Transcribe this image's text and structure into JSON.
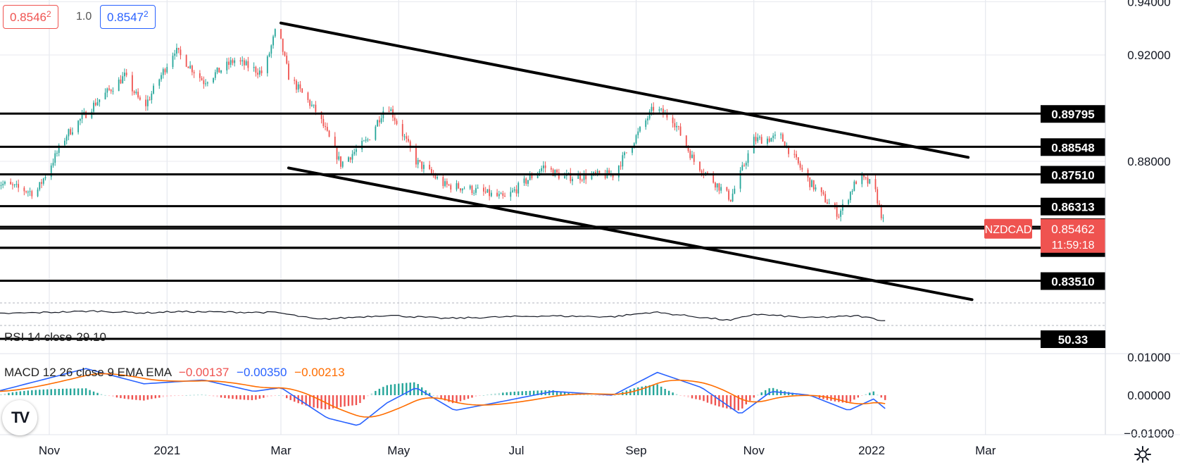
{
  "header": {
    "price_left": "0.8546",
    "price_left_sup": "2",
    "multiplier": "1.0",
    "price_right": "0.8547",
    "price_right_sup": "2"
  },
  "symbol": "NZDCAD",
  "current_price": "0.85462",
  "countdown": "11:59:18",
  "colors": {
    "up": "#26a69a",
    "down": "#ef5350",
    "macd_line": "#2962ff",
    "signal_line": "#ff6d00",
    "label_bg": "#000000"
  },
  "indicators": {
    "rsi": {
      "name": "RSI 14 close",
      "value": "29.10",
      "level_label": "50.33"
    },
    "macd": {
      "name": "MACD 12 26 close 9 EMA EMA",
      "hist": "−0.00137",
      "macd": "−0.00350",
      "signal": "−0.00213"
    }
  },
  "chart_data": {
    "type": "candlestick",
    "symbol": "NZDCAD",
    "x_ticks": [
      "Nov",
      "2021",
      "Mar",
      "May",
      "Jul",
      "Sep",
      "Nov",
      "2022",
      "Mar"
    ],
    "x_ticks_months": [
      "2020-11",
      "2021-01",
      "2021-03",
      "2021-05",
      "2021-07",
      "2021-09",
      "2021-11",
      "2022-01",
      "2022-03"
    ],
    "y_ticks": [
      "0.94000",
      "0.92000",
      "0.88000"
    ],
    "ylim": [
      0.823,
      0.9408
    ],
    "horizontal_levels": [
      "0.89795",
      "0.88548",
      "0.87510",
      "0.86313",
      "0.85537",
      "0.84750",
      "0.83510"
    ],
    "unlabeled_level": 0.8475,
    "trendlines": [
      {
        "start": [
          "2021-03-01",
          0.932
        ],
        "end": [
          "2022-02-20",
          0.8815
        ]
      },
      {
        "start": [
          "2021-03-05",
          0.8775
        ],
        "end": [
          "2022-02-22",
          0.828
        ]
      }
    ],
    "price_path": [
      [
        "2020-10-05",
        0.872
      ],
      [
        "2020-10-25",
        0.868
      ],
      [
        "2020-11-10",
        0.89
      ],
      [
        "2020-11-25",
        0.902
      ],
      [
        "2020-12-10",
        0.912
      ],
      [
        "2020-12-20",
        0.9
      ],
      [
        "2021-01-05",
        0.922
      ],
      [
        "2021-01-20",
        0.91
      ],
      [
        "2021-02-05",
        0.918
      ],
      [
        "2021-02-20",
        0.913
      ],
      [
        "2021-02-27",
        0.931
      ],
      [
        "2021-03-05",
        0.912
      ],
      [
        "2021-03-20",
        0.898
      ],
      [
        "2021-04-01",
        0.879
      ],
      [
        "2021-04-15",
        0.888
      ],
      [
        "2021-04-25",
        0.902
      ],
      [
        "2021-05-10",
        0.88
      ],
      [
        "2021-05-25",
        0.871
      ],
      [
        "2021-06-05",
        0.87
      ],
      [
        "2021-06-25",
        0.866
      ],
      [
        "2021-07-15",
        0.878
      ],
      [
        "2021-07-25",
        0.874
      ],
      [
        "2021-08-20",
        0.875
      ],
      [
        "2021-09-10",
        0.9
      ],
      [
        "2021-09-20",
        0.896
      ],
      [
        "2021-10-01",
        0.88
      ],
      [
        "2021-10-20",
        0.866
      ],
      [
        "2021-11-01",
        0.888
      ],
      [
        "2021-11-15",
        0.889
      ],
      [
        "2021-11-30",
        0.872
      ],
      [
        "2021-12-15",
        0.86
      ],
      [
        "2021-12-25",
        0.874
      ],
      [
        "2022-01-02",
        0.871
      ],
      [
        "2022-01-08",
        0.8546
      ]
    ],
    "rsi_ylim": [
      0,
      100
    ],
    "rsi_path": [
      [
        "2020-10-05",
        62
      ],
      [
        "2020-11-25",
        75
      ],
      [
        "2020-12-20",
        66
      ],
      [
        "2021-01-05",
        72
      ],
      [
        "2021-02-27",
        68
      ],
      [
        "2021-03-20",
        35
      ],
      [
        "2021-04-25",
        55
      ],
      [
        "2021-05-25",
        40
      ],
      [
        "2021-07-15",
        52
      ],
      [
        "2021-08-20",
        48
      ],
      [
        "2021-09-10",
        70
      ],
      [
        "2021-10-20",
        30
      ],
      [
        "2021-11-01",
        60
      ],
      [
        "2021-11-30",
        43
      ],
      [
        "2021-12-25",
        52
      ],
      [
        "2022-01-08",
        29.1
      ]
    ],
    "macd_ticks": [
      "0.01000",
      "0.00000",
      "−0.01000"
    ],
    "macd_ylim": [
      -0.0115,
      0.0115
    ],
    "macd_path": [
      [
        "2020-10-05",
        0.001
      ],
      [
        "2020-11-20",
        0.007
      ],
      [
        "2020-12-20",
        0.003
      ],
      [
        "2021-01-20",
        0.004
      ],
      [
        "2021-02-15",
        0.001
      ],
      [
        "2021-03-01",
        0.002
      ],
      [
        "2021-03-25",
        -0.006
      ],
      [
        "2021-04-10",
        -0.008
      ],
      [
        "2021-04-25",
        -0.002
      ],
      [
        "2021-05-10",
        0.002
      ],
      [
        "2021-05-30",
        -0.004
      ],
      [
        "2021-06-20",
        -0.002
      ],
      [
        "2021-07-20",
        0.001
      ],
      [
        "2021-08-20",
        0.0
      ],
      [
        "2021-09-12",
        0.006
      ],
      [
        "2021-10-05",
        0.002
      ],
      [
        "2021-10-25",
        -0.005
      ],
      [
        "2021-11-10",
        0.001
      ],
      [
        "2021-11-30",
        0.0
      ],
      [
        "2021-12-20",
        -0.004
      ],
      [
        "2022-01-02",
        -0.001
      ],
      [
        "2022-01-08",
        -0.0035
      ]
    ]
  }
}
